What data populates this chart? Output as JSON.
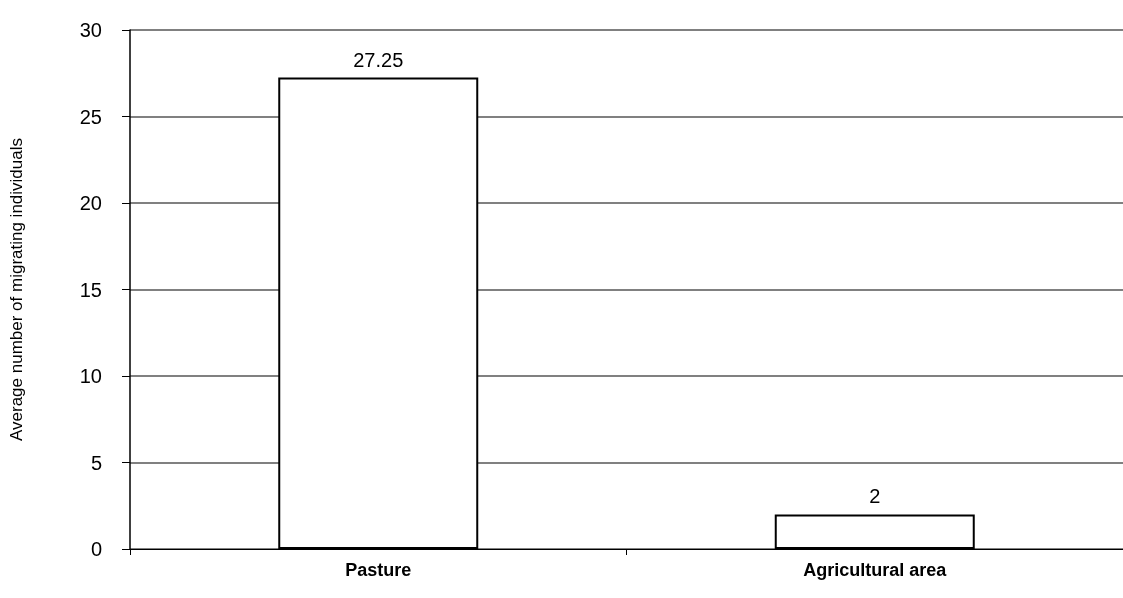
{
  "chart_data": {
    "type": "bar",
    "ylabel": "Average number of migrating individuals",
    "categories": [
      "Pasture",
      "Agricultural area"
    ],
    "values": [
      27.25,
      2
    ],
    "color": "#ffffff",
    "ylim": [
      0,
      30
    ],
    "yticks": [
      0,
      5,
      10,
      15,
      20,
      25,
      30
    ],
    "grid": "y",
    "data_labels": true
  }
}
